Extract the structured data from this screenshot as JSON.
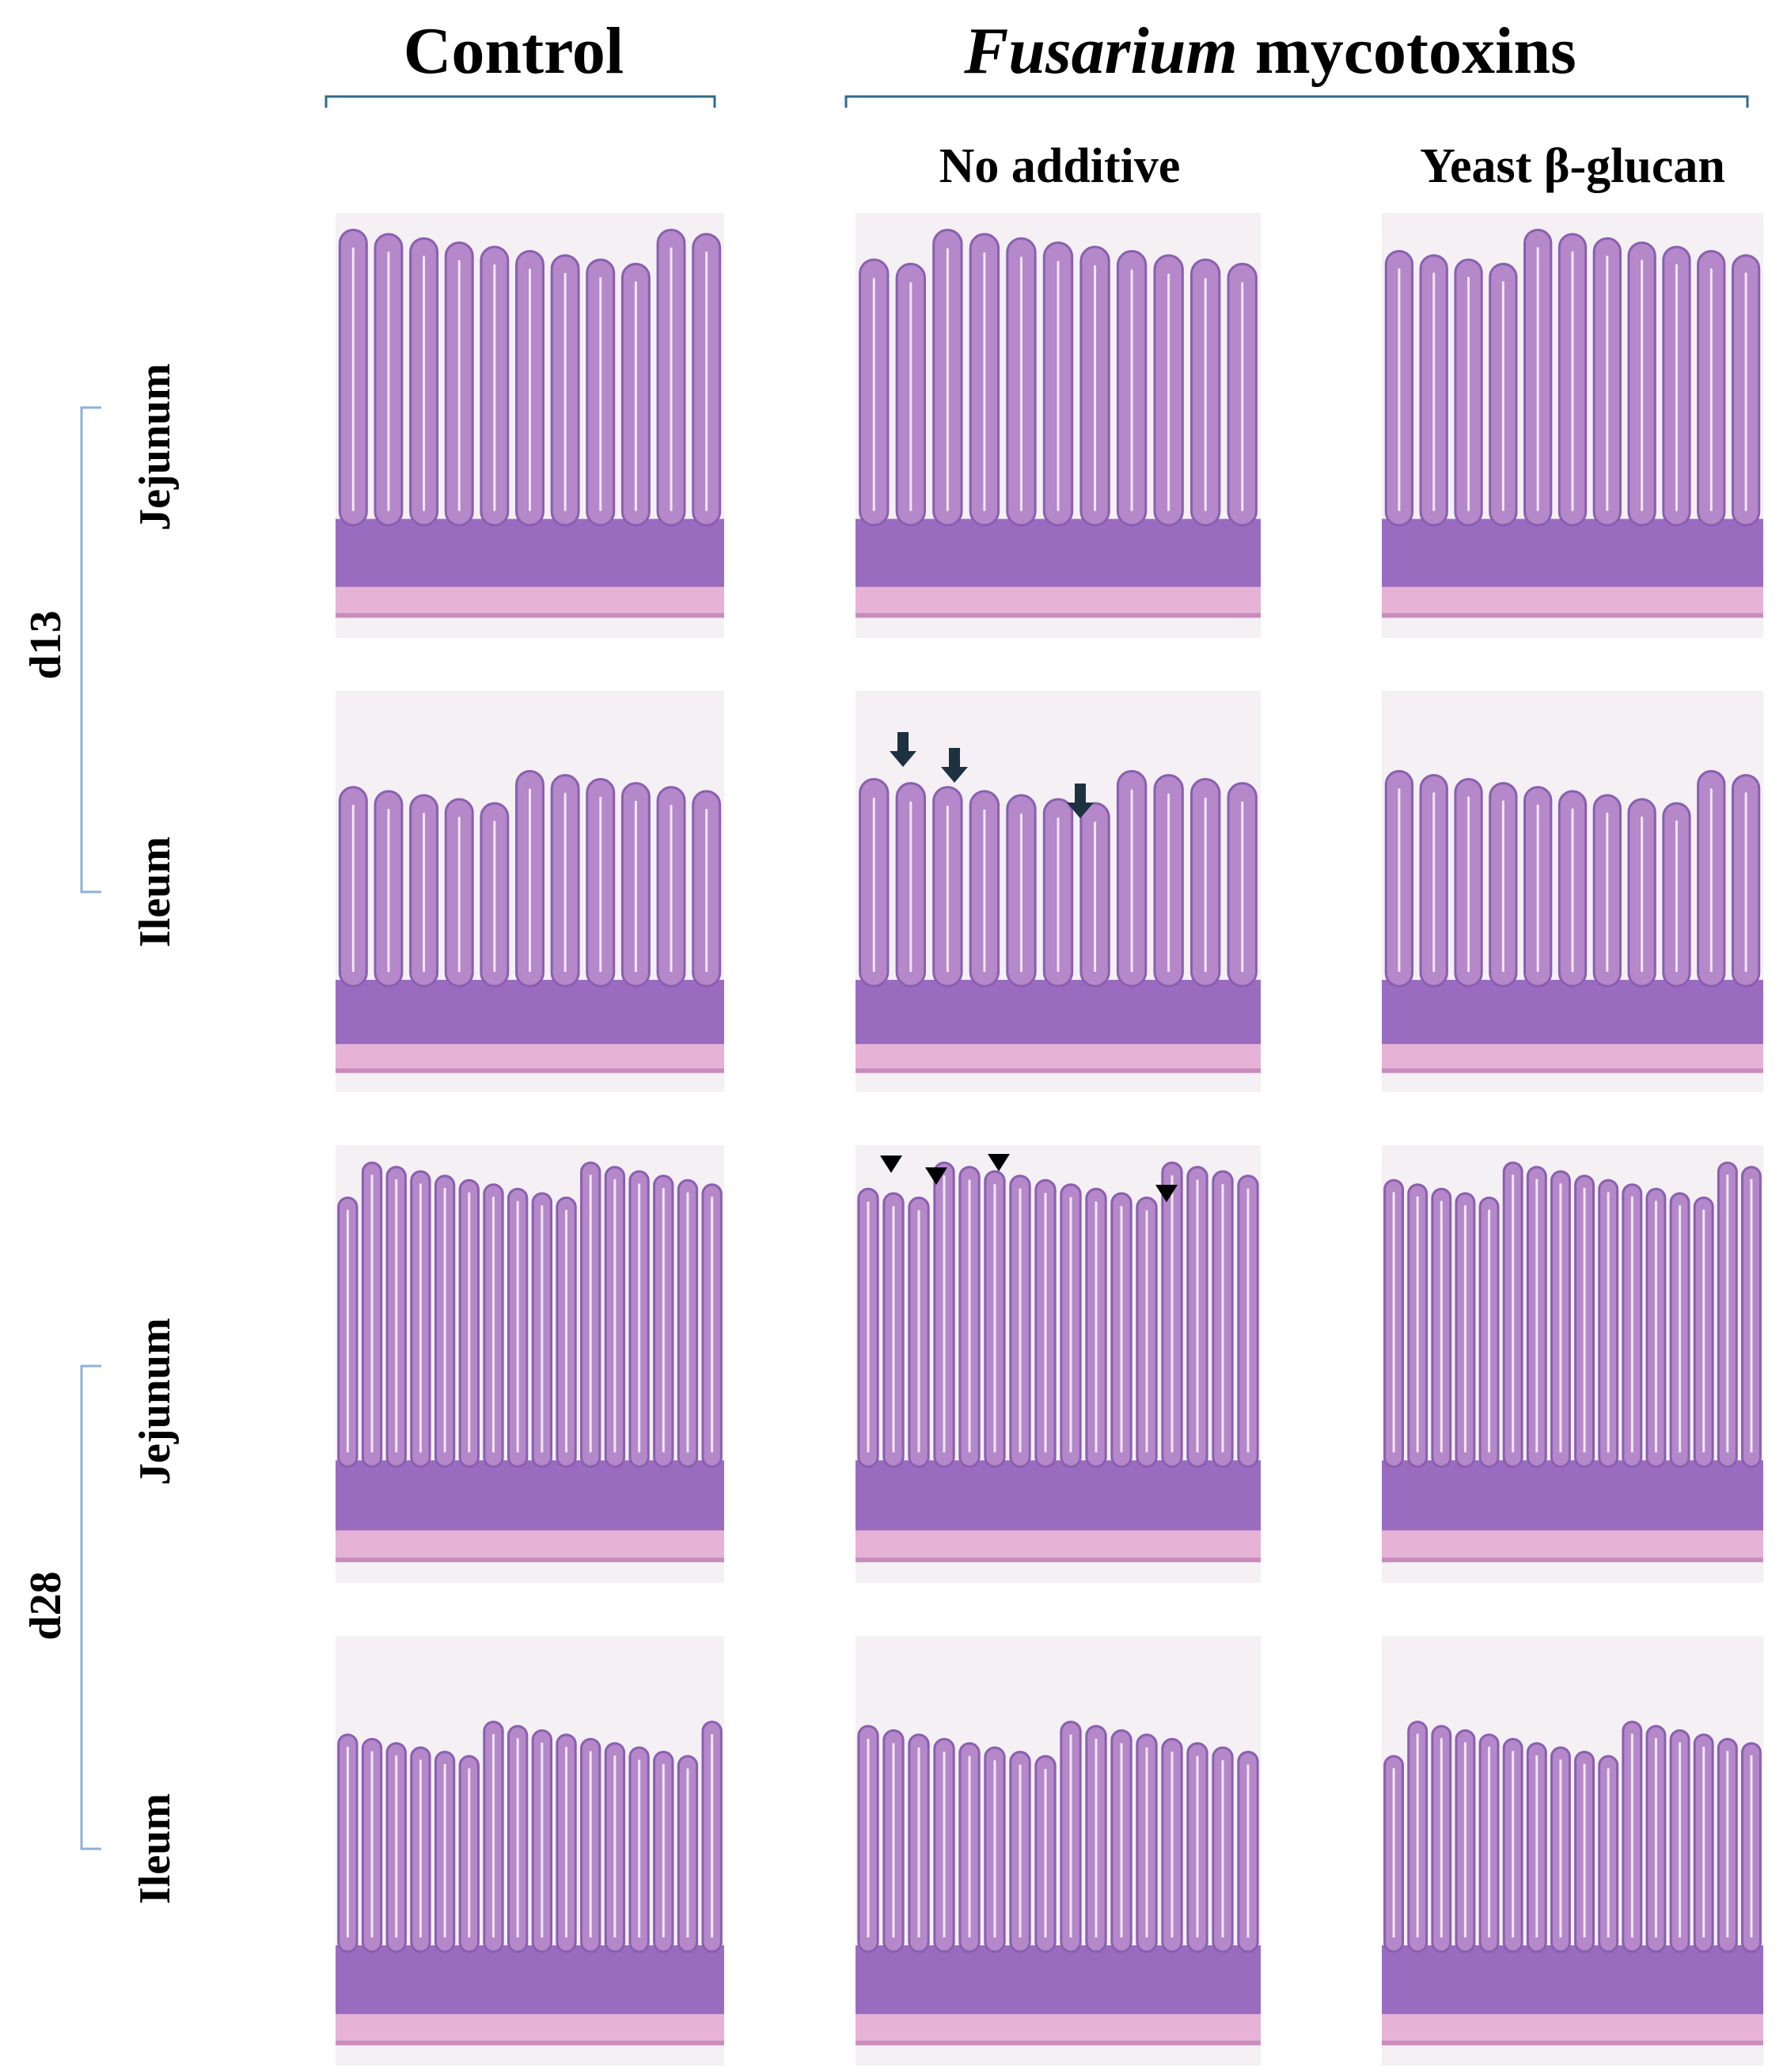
{
  "header": {
    "control": "Control",
    "treatment_italic": "Fusarium",
    "treatment_rest": "mycotoxins"
  },
  "subheaders": [
    "No additive",
    "Yeast β-glucan"
  ],
  "groups": [
    {
      "label": "d13",
      "rows": [
        "Jejunum",
        "Ileum"
      ]
    },
    {
      "label": "d28",
      "rows": [
        "Jejunum",
        "Ileum"
      ]
    }
  ]
}
